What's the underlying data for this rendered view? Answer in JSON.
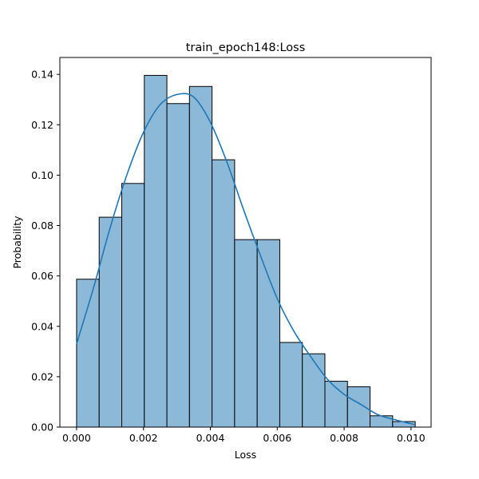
{
  "chart_data": {
    "type": "bar",
    "subtype": "histogram_with_kde",
    "title": "train_epoch148:Loss",
    "xlabel": "Loss",
    "ylabel": "Probability",
    "xlim": [
      -0.0005,
      0.0106
    ],
    "ylim": [
      0,
      0.1467
    ],
    "xticks": [
      0.0,
      0.002,
      0.004,
      0.006,
      0.008,
      0.01
    ],
    "xtick_labels": [
      "0.000",
      "0.002",
      "0.004",
      "0.006",
      "0.008",
      "0.010"
    ],
    "yticks": [
      0.0,
      0.02,
      0.04,
      0.06,
      0.08,
      0.1,
      0.12,
      0.14
    ],
    "ytick_labels": [
      "0.00",
      "0.02",
      "0.04",
      "0.06",
      "0.08",
      "0.10",
      "0.12",
      "0.14"
    ],
    "bin_edges": [
      0.0,
      0.000675,
      0.00135,
      0.002025,
      0.0027,
      0.003375,
      0.00405,
      0.004725,
      0.0054,
      0.006075,
      0.00675,
      0.007425,
      0.0081,
      0.008775,
      0.00945,
      0.010125
    ],
    "values": [
      0.0587,
      0.0833,
      0.0967,
      0.1396,
      0.1284,
      0.1352,
      0.1061,
      0.0744,
      0.0744,
      0.0336,
      0.0291,
      0.0182,
      0.016,
      0.0045,
      0.0022
    ],
    "kde": {
      "x": [
        0.0,
        0.0005,
        0.001,
        0.0015,
        0.002,
        0.0025,
        0.003,
        0.0035,
        0.004,
        0.0045,
        0.005,
        0.0055,
        0.006,
        0.0065,
        0.007,
        0.0075,
        0.008,
        0.0085,
        0.009,
        0.0095,
        0.0101
      ],
      "y": [
        0.033,
        0.055,
        0.079,
        0.1,
        0.117,
        0.128,
        0.132,
        0.131,
        0.121,
        0.105,
        0.086,
        0.068,
        0.051,
        0.038,
        0.028,
        0.019,
        0.013,
        0.009,
        0.005,
        0.003,
        0.001
      ]
    },
    "colors": {
      "bar_fill": "#8db9d9",
      "bar_edge": "#000000",
      "kde_line": "#1f77b4"
    },
    "grid": false,
    "legend": "none"
  }
}
